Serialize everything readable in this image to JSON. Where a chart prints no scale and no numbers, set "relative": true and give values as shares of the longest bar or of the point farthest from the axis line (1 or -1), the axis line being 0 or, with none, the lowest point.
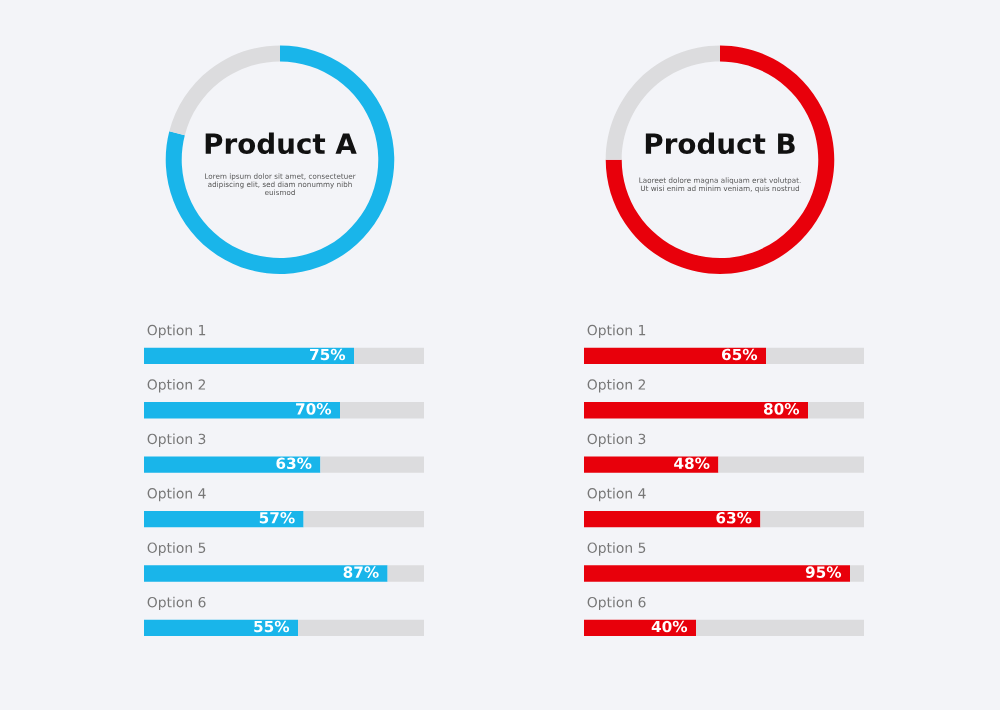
{
  "chart_data": [
    {
      "type": "donut",
      "title": "Product A",
      "subtitle": "Lorem ipsum dolor sit amet, consectetuer adipiscing elit, sed diam nonummy nibh euismod",
      "relative": true,
      "categories": [
        null,
        null
      ],
      "values": [
        79,
        21
      ],
      "colors": [
        "#19b5ea",
        "#dcdcde"
      ]
    },
    {
      "type": "donut",
      "title": "Product B",
      "subtitle": "Laoreet dolore magna aliquam erat volutpat. Ut wisi enim ad minim veniam, quis nostrud",
      "relative": true,
      "categories": [
        null,
        null
      ],
      "values": [
        75,
        25
      ],
      "colors": [
        "#e8000b",
        "#dcdcde"
      ]
    },
    {
      "type": "bar",
      "orientation": "horizontal",
      "stacked": true,
      "tick_labels": false,
      "xlim": [
        0,
        100
      ],
      "categories": [
        "Option 1",
        "Option 2",
        "Option 3",
        "Option 4",
        "Option 5",
        "Option 6"
      ],
      "series": [
        {
          "color": "#19b5ea",
          "values": [
            75,
            70,
            63,
            57,
            87,
            55
          ],
          "value_labels": [
            "75%",
            "70%",
            "63%",
            "57%",
            "87%",
            "55%"
          ]
        },
        {
          "color": "#dcdcde",
          "values": [
            25,
            30,
            37,
            43,
            13,
            45
          ]
        }
      ]
    },
    {
      "type": "bar",
      "orientation": "horizontal",
      "stacked": true,
      "tick_labels": false,
      "xlim": [
        0,
        100
      ],
      "categories": [
        "Option 1",
        "Option 2",
        "Option 3",
        "Option 4",
        "Option 5",
        "Option 6"
      ],
      "series": [
        {
          "color": "#e8000b",
          "values": [
            65,
            80,
            48,
            63,
            95,
            40
          ],
          "value_labels": [
            "65%",
            "80%",
            "48%",
            "63%",
            "95%",
            "40%"
          ]
        },
        {
          "color": "#dcdcde",
          "values": [
            35,
            20,
            52,
            37,
            5,
            60
          ]
        }
      ]
    }
  ]
}
